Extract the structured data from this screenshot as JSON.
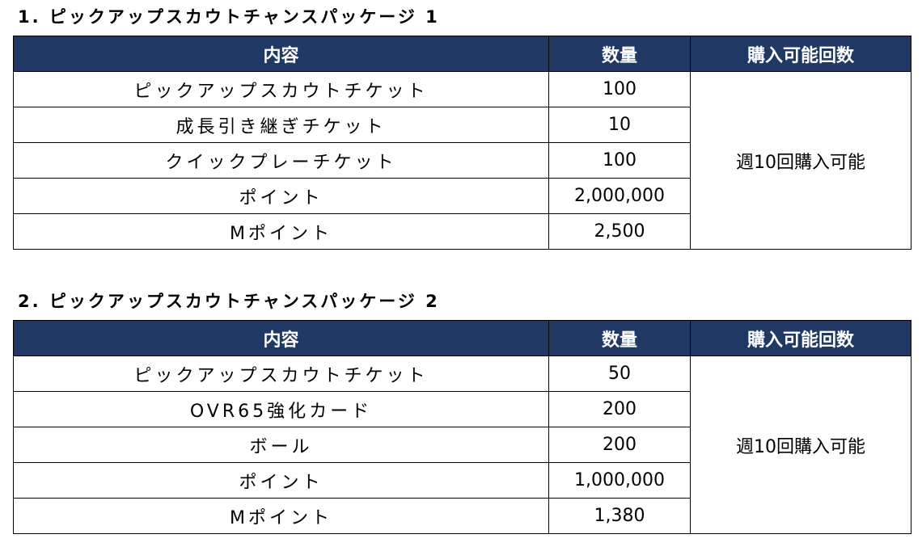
{
  "sections": [
    {
      "title": "1. ピックアップスカウトチャンスパッケージ 1",
      "table": {
        "headers": [
          "内容",
          "数量",
          "購入可能回数"
        ],
        "rows": [
          [
            "ピックアップスカウトチケット",
            "100"
          ],
          [
            "成長引き継ぎチケット",
            "10"
          ],
          [
            "クイックプレーチケット",
            "100"
          ],
          [
            "ポイント",
            "2,000,000"
          ],
          [
            "Mポイント",
            "2,500"
          ]
        ],
        "limit": "週10回購入可能"
      }
    },
    {
      "title": "2. ピックアップスカウトチャンスパッケージ 2",
      "table": {
        "headers": [
          "内容",
          "数量",
          "購入可能回数"
        ],
        "rows": [
          [
            "ピックアップスカウトチケット",
            "50"
          ],
          [
            "OVR65強化カード",
            "200"
          ],
          [
            "ボール",
            "200"
          ],
          [
            "ポイント",
            "1,000,000"
          ],
          [
            "Mポイント",
            "1,380"
          ]
        ],
        "limit": "週10回購入可能"
      }
    }
  ]
}
